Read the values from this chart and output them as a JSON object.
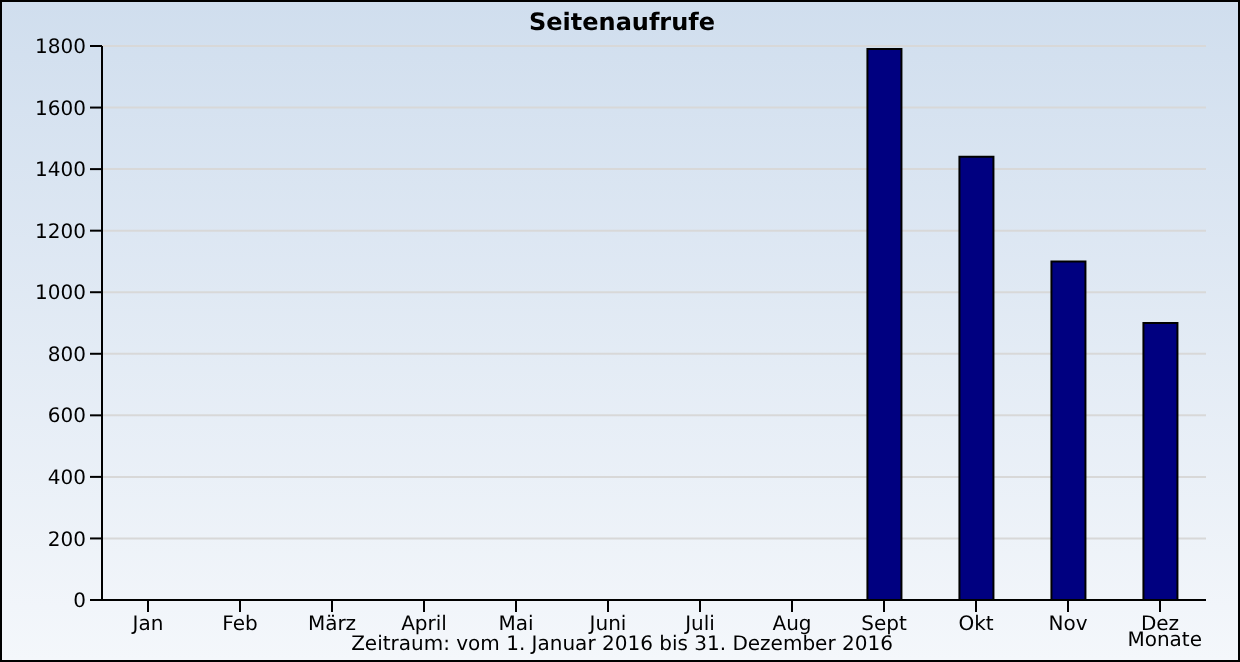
{
  "chart_data": {
    "type": "bar",
    "title": "Seitenaufrufe",
    "xlabel": "Monate",
    "annotations": [
      "Zeitraum: vom 1. Januar 2016 bis 31. Dezember 2016"
    ],
    "categories": [
      "Jan",
      "Feb",
      "März",
      "April",
      "Mai",
      "Juni",
      "Juli",
      "Aug",
      "Sept",
      "Okt",
      "Nov",
      "Dez"
    ],
    "values": [
      0,
      0,
      0,
      0,
      0,
      0,
      0,
      0,
      1790,
      1440,
      1100,
      900
    ],
    "color": "#000080",
    "ylim": [
      0,
      1800
    ],
    "yticks": [
      0,
      200,
      400,
      600,
      800,
      1000,
      1200,
      1400,
      1600,
      1800
    ],
    "grid": "y"
  }
}
